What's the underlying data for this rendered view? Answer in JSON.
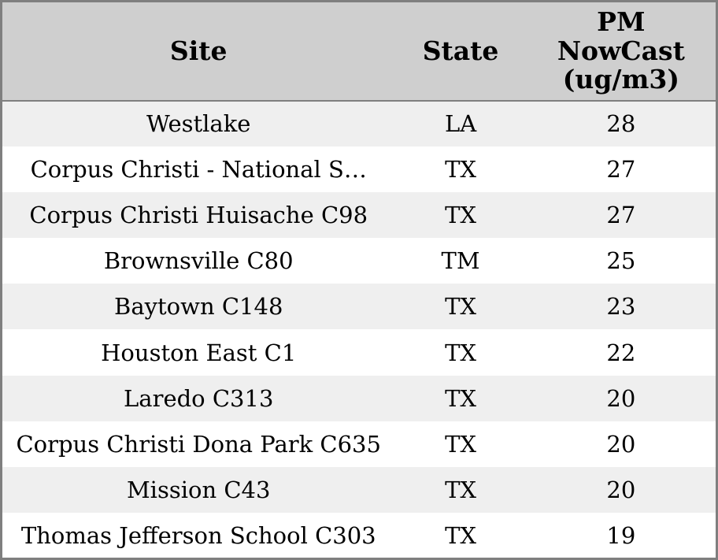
{
  "chart_data": {
    "type": "table",
    "title": "",
    "columns": [
      "Site",
      "State",
      "PM NowCast (ug/m3)"
    ],
    "rows": [
      [
        "Westlake",
        "LA",
        28
      ],
      [
        "Corpus Christi - National S…",
        "TX",
        27
      ],
      [
        "Corpus Christi Huisache C98",
        "TX",
        27
      ],
      [
        "Brownsville C80",
        "TM",
        25
      ],
      [
        "Baytown C148",
        "TX",
        23
      ],
      [
        "Houston East C1",
        "TX",
        22
      ],
      [
        "Laredo C313",
        "TX",
        20
      ],
      [
        "Corpus Christi Dona Park C635",
        "TX",
        20
      ],
      [
        "Mission C43",
        "TX",
        20
      ],
      [
        "Thomas Jefferson School C303",
        "TX",
        19
      ]
    ]
  },
  "header": {
    "site": "Site",
    "state": "State",
    "pm_lines": [
      "PM",
      "NowCast",
      "(ug/m3)"
    ]
  },
  "rows": [
    {
      "site": "Westlake",
      "state": "LA",
      "pm": "28"
    },
    {
      "site": "Corpus Christi - National S…",
      "state": "TX",
      "pm": "27"
    },
    {
      "site": "Corpus Christi Huisache C98",
      "state": "TX",
      "pm": "27"
    },
    {
      "site": "Brownsville C80",
      "state": "TM",
      "pm": "25"
    },
    {
      "site": "Baytown C148",
      "state": "TX",
      "pm": "23"
    },
    {
      "site": "Houston East C1",
      "state": "TX",
      "pm": "22"
    },
    {
      "site": "Laredo C313",
      "state": "TX",
      "pm": "20"
    },
    {
      "site": "Corpus Christi Dona Park C635",
      "state": "TX",
      "pm": "20"
    },
    {
      "site": "Mission C43",
      "state": "TX",
      "pm": "20"
    },
    {
      "site": "Thomas Jefferson School C303",
      "state": "TX",
      "pm": "19"
    }
  ],
  "colors": {
    "header_bg": "#cfcfcf",
    "row_alt_bg": "#efefef",
    "row_bg": "#ffffff",
    "border": "#7f7f7f",
    "text": "#000000"
  }
}
